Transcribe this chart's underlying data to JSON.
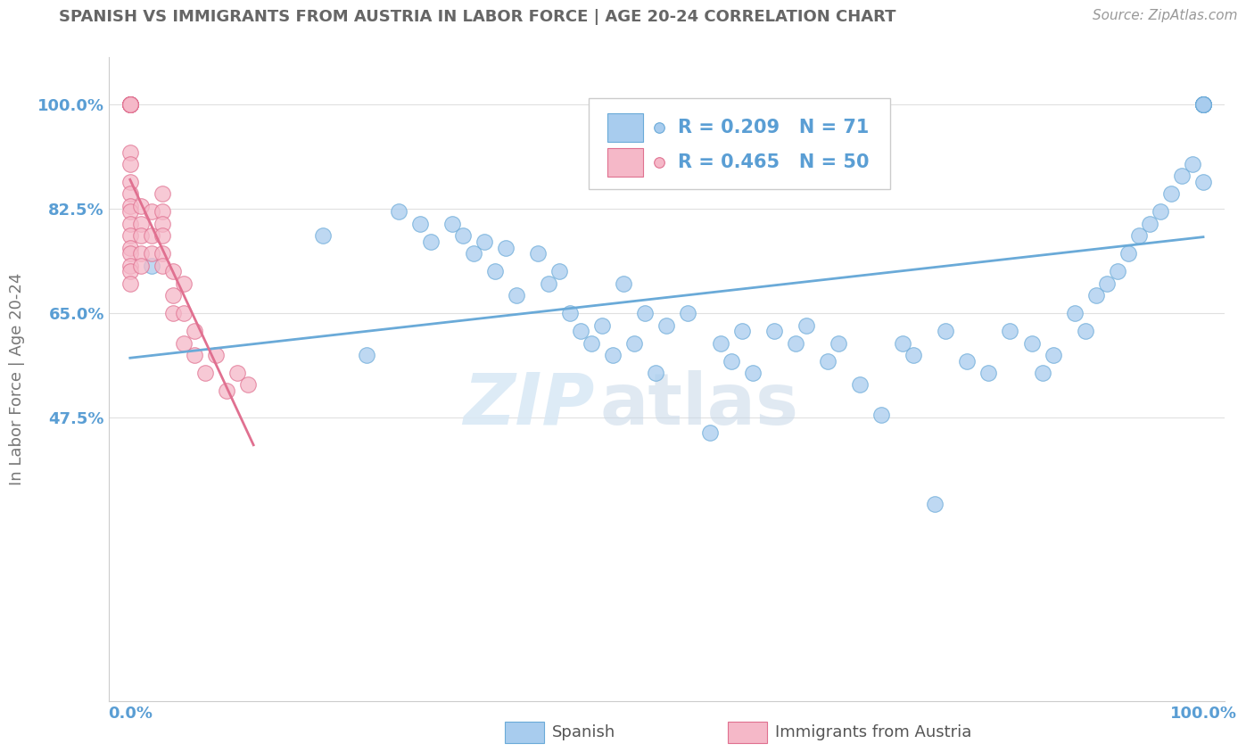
{
  "title": "SPANISH VS IMMIGRANTS FROM AUSTRIA IN LABOR FORCE | AGE 20-24 CORRELATION CHART",
  "source": "Source: ZipAtlas.com",
  "ylabel": "In Labor Force | Age 20-24",
  "watermark_zip": "ZIP",
  "watermark_atlas": "atlas",
  "legend_blue_r": "R = 0.209",
  "legend_blue_n": "N = 71",
  "legend_pink_r": "R = 0.465",
  "legend_pink_n": "N = 50",
  "blue_color": "#A8CCEE",
  "blue_edge": "#6AAAD8",
  "pink_color": "#F5B8C8",
  "pink_edge": "#E07090",
  "blue_line_color": "#6AAAD8",
  "pink_line_color": "#E07090",
  "background_color": "#FFFFFF",
  "grid_color": "#E0E0E0",
  "title_color": "#666666",
  "axis_label_color": "#5A9ED4",
  "ytick_vals": [
    0.475,
    0.65,
    0.825,
    1.0
  ],
  "ytick_labels": [
    "47.5%",
    "65.0%",
    "82.5%",
    "100.0%"
  ],
  "xtick_vals": [
    0.0,
    1.0
  ],
  "xtick_labels": [
    "0.0%",
    "100.0%"
  ],
  "xlim": [
    -0.02,
    1.02
  ],
  "ylim": [
    0.0,
    1.08
  ],
  "blue_scatter_x": [
    0.02,
    0.18,
    0.22,
    0.25,
    0.27,
    0.28,
    0.3,
    0.31,
    0.32,
    0.33,
    0.34,
    0.35,
    0.36,
    0.38,
    0.39,
    0.4,
    0.41,
    0.42,
    0.43,
    0.44,
    0.45,
    0.46,
    0.47,
    0.48,
    0.49,
    0.5,
    0.52,
    0.54,
    0.55,
    0.56,
    0.57,
    0.58,
    0.6,
    0.62,
    0.63,
    0.65,
    0.66,
    0.68,
    0.7,
    0.72,
    0.73,
    0.75,
    0.76,
    0.78,
    0.8,
    0.82,
    0.84,
    0.85,
    0.86,
    0.88,
    0.89,
    0.9,
    0.91,
    0.92,
    0.93,
    0.94,
    0.95,
    0.96,
    0.97,
    0.98,
    0.99,
    1.0,
    1.0,
    1.0,
    1.0,
    1.0,
    1.0,
    1.0,
    1.0,
    1.0,
    1.0
  ],
  "blue_scatter_y": [
    0.73,
    0.78,
    0.58,
    0.82,
    0.8,
    0.77,
    0.8,
    0.78,
    0.75,
    0.77,
    0.72,
    0.76,
    0.68,
    0.75,
    0.7,
    0.72,
    0.65,
    0.62,
    0.6,
    0.63,
    0.58,
    0.7,
    0.6,
    0.65,
    0.55,
    0.63,
    0.65,
    0.45,
    0.6,
    0.57,
    0.62,
    0.55,
    0.62,
    0.6,
    0.63,
    0.57,
    0.6,
    0.53,
    0.48,
    0.6,
    0.58,
    0.33,
    0.62,
    0.57,
    0.55,
    0.62,
    0.6,
    0.55,
    0.58,
    0.65,
    0.62,
    0.68,
    0.7,
    0.72,
    0.75,
    0.78,
    0.8,
    0.82,
    0.85,
    0.88,
    0.9,
    1.0,
    1.0,
    1.0,
    1.0,
    1.0,
    1.0,
    1.0,
    1.0,
    1.0,
    0.87
  ],
  "pink_scatter_x": [
    0.0,
    0.0,
    0.0,
    0.0,
    0.0,
    0.0,
    0.0,
    0.0,
    0.0,
    0.0,
    0.0,
    0.0,
    0.0,
    0.0,
    0.0,
    0.0,
    0.0,
    0.0,
    0.0,
    0.0,
    0.0,
    0.0,
    0.0,
    0.01,
    0.01,
    0.01,
    0.01,
    0.01,
    0.02,
    0.02,
    0.02,
    0.03,
    0.03,
    0.03,
    0.03,
    0.03,
    0.03,
    0.04,
    0.04,
    0.04,
    0.05,
    0.05,
    0.05,
    0.06,
    0.06,
    0.07,
    0.08,
    0.09,
    0.1,
    0.11
  ],
  "pink_scatter_y": [
    1.0,
    1.0,
    1.0,
    1.0,
    1.0,
    1.0,
    1.0,
    1.0,
    1.0,
    1.0,
    0.92,
    0.9,
    0.87,
    0.85,
    0.83,
    0.82,
    0.8,
    0.78,
    0.76,
    0.75,
    0.73,
    0.72,
    0.7,
    0.83,
    0.8,
    0.78,
    0.75,
    0.73,
    0.82,
    0.78,
    0.75,
    0.85,
    0.82,
    0.8,
    0.78,
    0.75,
    0.73,
    0.72,
    0.68,
    0.65,
    0.7,
    0.65,
    0.6,
    0.62,
    0.58,
    0.55,
    0.58,
    0.52,
    0.55,
    0.53
  ],
  "bottom_legend": [
    {
      "label": "Spanish",
      "color": "#A8CCEE",
      "edge": "#6AAAD8"
    },
    {
      "label": "Immigrants from Austria",
      "color": "#F5B8C8",
      "edge": "#E07090"
    }
  ]
}
